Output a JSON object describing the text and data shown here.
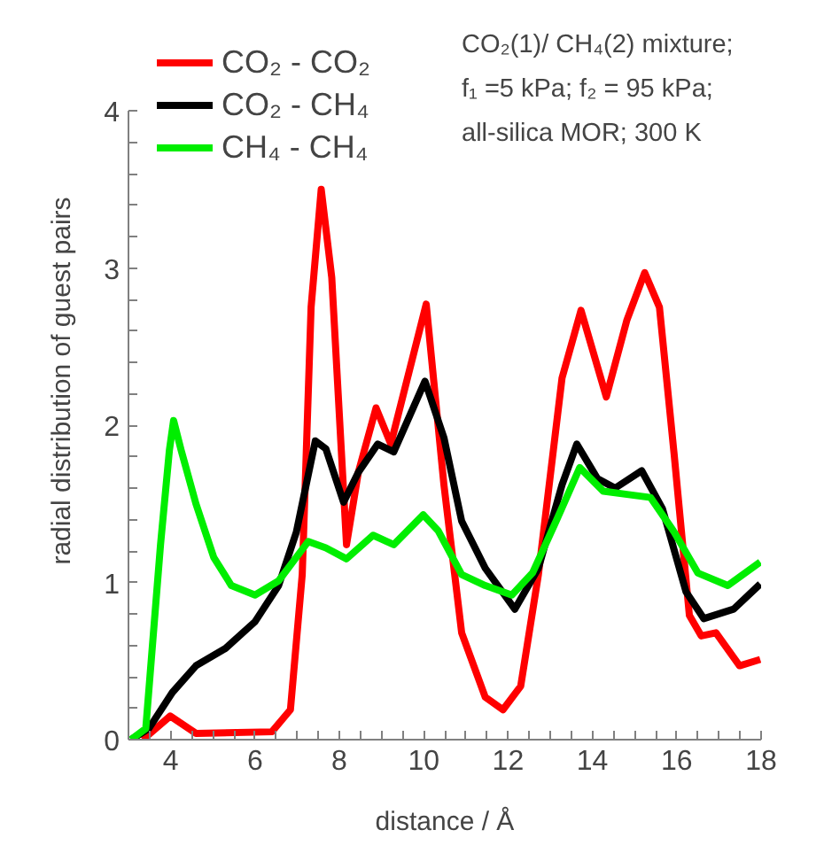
{
  "chart_data": {
    "type": "line",
    "xlabel": "distance / Å",
    "ylabel": "radial distribution of guest pairs",
    "annotations": [
      "CO₂(1)/ CH₄(2) mixture;",
      "f₁ =5 kPa; f₂ = 95 kPa;",
      "all-silica MOR; 300 K"
    ],
    "xlim": [
      3,
      18
    ],
    "ylim": [
      0,
      4
    ],
    "xticks": [
      {
        "value": 3,
        "label": null
      },
      {
        "value": 3.5,
        "label": null
      },
      4,
      {
        "value": 4.5,
        "label": null
      },
      {
        "value": 5,
        "label": null
      },
      {
        "value": 5.5,
        "label": null
      },
      6,
      {
        "value": 6.5,
        "label": null
      },
      {
        "value": 7,
        "label": null
      },
      {
        "value": 7.5,
        "label": null
      },
      8,
      {
        "value": 8.5,
        "label": null
      },
      {
        "value": 9,
        "label": null
      },
      {
        "value": 9.5,
        "label": null
      },
      10,
      {
        "value": 10.5,
        "label": null
      },
      {
        "value": 11,
        "label": null
      },
      {
        "value": 11.5,
        "label": null
      },
      12,
      {
        "value": 12.5,
        "label": null
      },
      {
        "value": 13,
        "label": null
      },
      {
        "value": 13.5,
        "label": null
      },
      14,
      {
        "value": 14.5,
        "label": null
      },
      {
        "value": 15,
        "label": null
      },
      {
        "value": 15.5,
        "label": null
      },
      16,
      {
        "value": 16.5,
        "label": null
      },
      {
        "value": 17,
        "label": null
      },
      {
        "value": 17.5,
        "label": null
      },
      18
    ],
    "yticks": [
      0,
      {
        "value": 0.2,
        "label": null
      },
      {
        "value": 0.4,
        "label": null
      },
      {
        "value": 0.6,
        "label": null
      },
      {
        "value": 0.8,
        "label": null
      },
      1,
      {
        "value": 1.2,
        "label": null
      },
      {
        "value": 1.4,
        "label": null
      },
      {
        "value": 1.6,
        "label": null
      },
      {
        "value": 1.8,
        "label": null
      },
      2,
      {
        "value": 2.2,
        "label": null
      },
      {
        "value": 2.4,
        "label": null
      },
      {
        "value": 2.6,
        "label": null
      },
      {
        "value": 2.8,
        "label": null
      },
      3,
      {
        "value": 3.2,
        "label": null
      },
      {
        "value": 3.4,
        "label": null
      },
      {
        "value": 3.6,
        "label": null
      },
      {
        "value": 3.8,
        "label": null
      },
      4
    ],
    "grid": false,
    "legend": "top left",
    "marker": "none",
    "line_style": "solid",
    "series": [
      {
        "name": "CO₂ - CO₂",
        "color": "#ff0000",
        "x": [
          3.34,
          3.99,
          4.6,
          6.4,
          6.84,
          7.12,
          7.33,
          7.57,
          7.82,
          8.17,
          8.45,
          8.87,
          9.22,
          10.06,
          10.48,
          10.9,
          11.46,
          11.88,
          12.3,
          12.72,
          13.28,
          13.73,
          14.33,
          14.82,
          15.24,
          15.59,
          15.94,
          16.3,
          16.58,
          16.93,
          17.49,
          17.98
        ],
        "values": [
          0,
          0.15,
          0.04,
          0.05,
          0.19,
          1.05,
          2.75,
          3.5,
          2.94,
          1.24,
          1.7,
          2.11,
          1.88,
          2.77,
          1.62,
          0.68,
          0.27,
          0.19,
          0.34,
          1.05,
          2.3,
          2.73,
          2.18,
          2.67,
          2.97,
          2.75,
          1.81,
          0.79,
          0.66,
          0.68,
          0.47,
          0.51
        ]
      },
      {
        "name": "CO₂ - CH₄",
        "color": "#000000",
        "x": [
          3.06,
          3.48,
          4.04,
          4.6,
          5.3,
          6.0,
          6.56,
          6.98,
          7.43,
          7.68,
          8.1,
          8.45,
          8.91,
          9.29,
          10.03,
          10.48,
          10.9,
          11.46,
          12.16,
          12.72,
          13.28,
          13.63,
          14.12,
          14.54,
          15.17,
          15.66,
          16.22,
          16.64,
          17.35,
          17.98
        ],
        "values": [
          0,
          0.07,
          0.3,
          0.47,
          0.58,
          0.75,
          0.98,
          1.32,
          1.9,
          1.85,
          1.51,
          1.7,
          1.88,
          1.83,
          2.28,
          1.92,
          1.39,
          1.09,
          0.83,
          1.09,
          1.62,
          1.88,
          1.66,
          1.6,
          1.71,
          1.47,
          0.94,
          0.77,
          0.83,
          0.99
        ]
      },
      {
        "name": "CH₄ - CH₄",
        "color": "#00ee00",
        "x": [
          3.06,
          3.41,
          3.76,
          3.97,
          4.07,
          4.25,
          4.6,
          5.02,
          5.44,
          6.0,
          6.56,
          6.98,
          7.26,
          7.68,
          8.17,
          8.8,
          9.29,
          9.99,
          10.34,
          10.9,
          11.46,
          12.09,
          12.58,
          13.14,
          13.7,
          14.26,
          14.82,
          15.38,
          15.94,
          16.5,
          17.21,
          17.98
        ],
        "values": [
          0,
          0.07,
          1.24,
          1.84,
          2.03,
          1.84,
          1.5,
          1.16,
          0.98,
          0.92,
          1.01,
          1.16,
          1.26,
          1.22,
          1.15,
          1.3,
          1.24,
          1.43,
          1.33,
          1.05,
          0.98,
          0.92,
          1.06,
          1.39,
          1.73,
          1.58,
          1.56,
          1.54,
          1.32,
          1.06,
          0.98,
          1.13
        ]
      }
    ]
  }
}
